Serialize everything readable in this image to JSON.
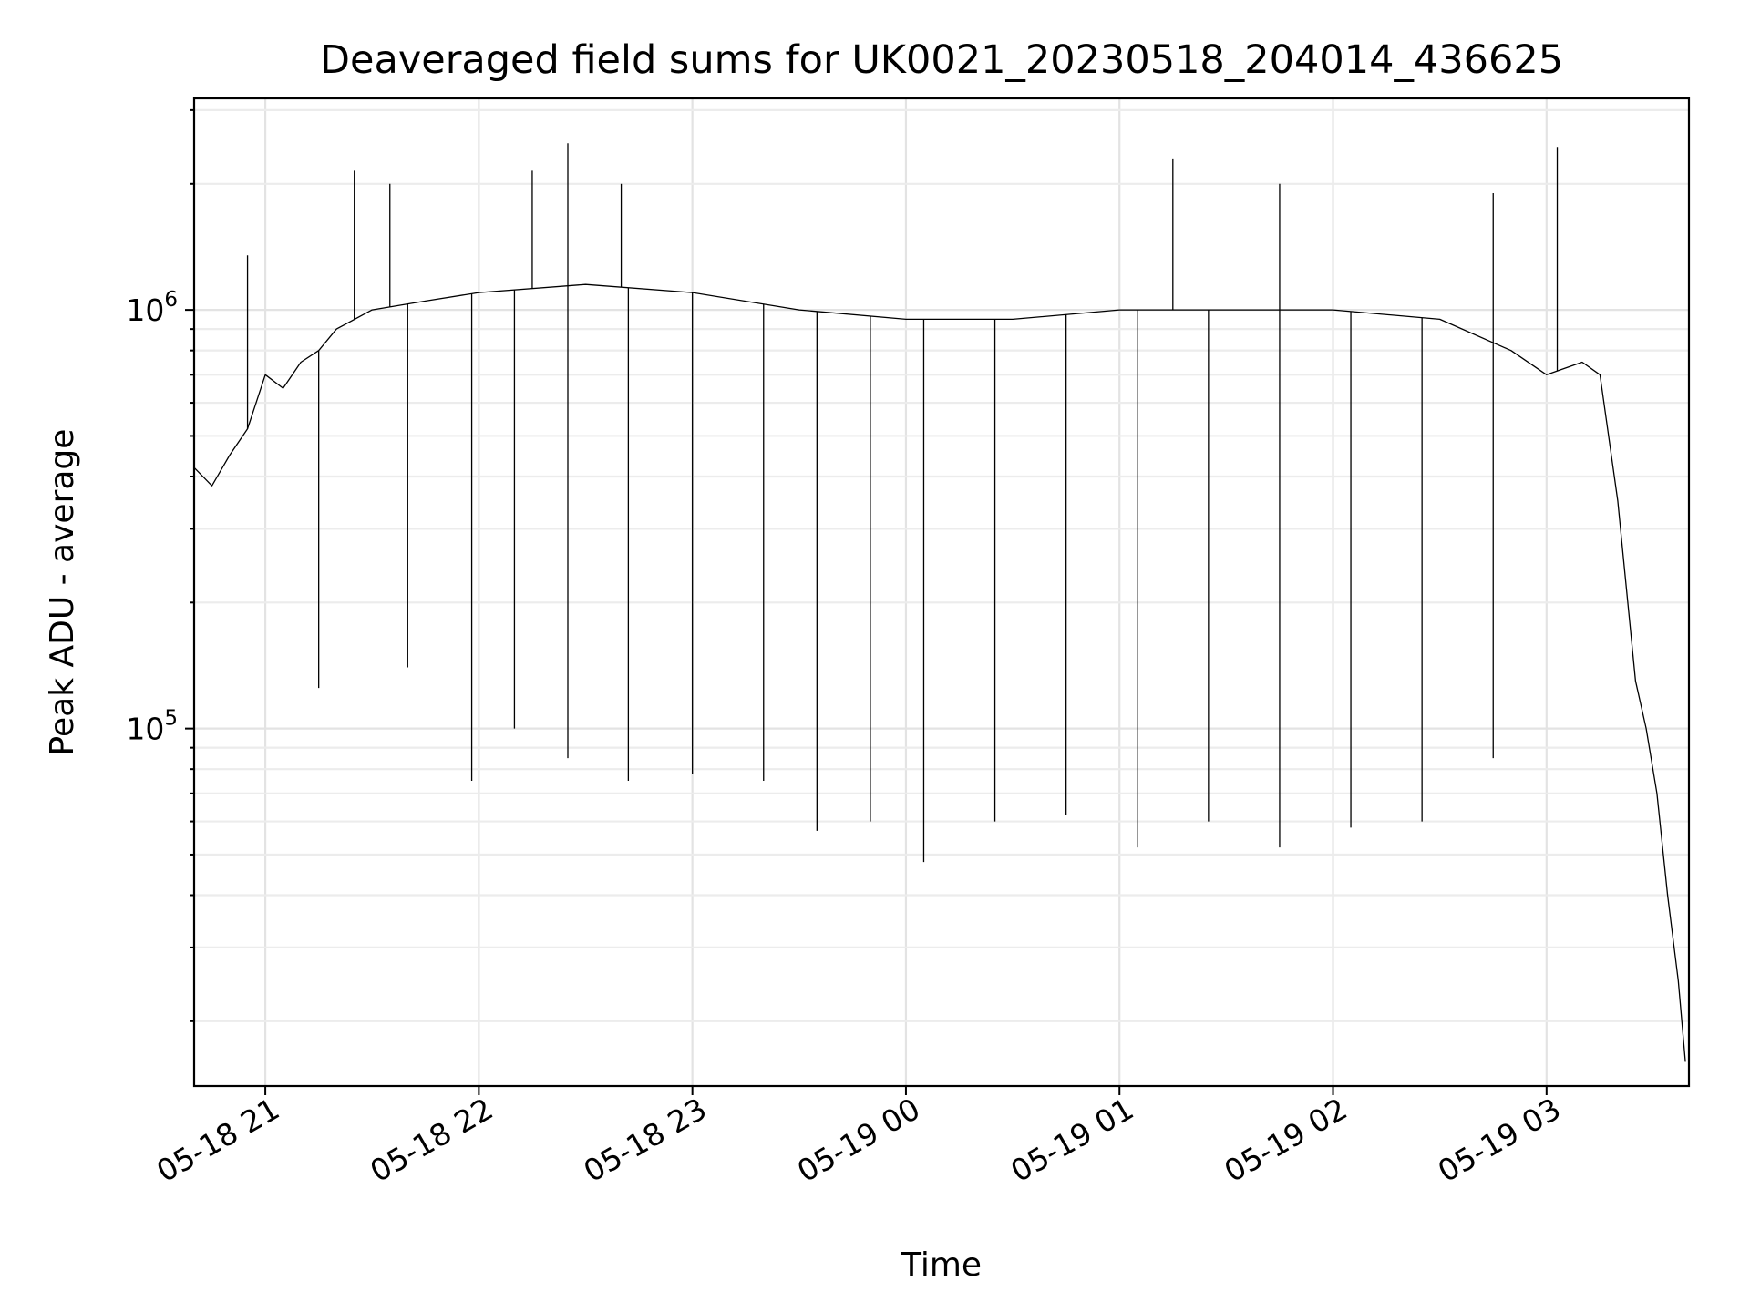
{
  "chart_data": {
    "type": "line",
    "title": "Deaveraged field sums for UK0021_20230518_204014_436625",
    "xlabel": "Time",
    "ylabel": "Peak ADU - average",
    "y_scale": "log",
    "grid": true,
    "color": "#000000",
    "xlim": [
      "2023-05-18 20:40",
      "2023-05-19 03:40"
    ],
    "ylim": [
      14000,
      3200000
    ],
    "x_ticks": [
      {
        "value": "2023-05-18 21:00",
        "label": "05-18 21"
      },
      {
        "value": "2023-05-18 22:00",
        "label": "05-18 22"
      },
      {
        "value": "2023-05-18 23:00",
        "label": "05-18 23"
      },
      {
        "value": "2023-05-19 00:00",
        "label": "05-19 00"
      },
      {
        "value": "2023-05-19 01:00",
        "label": "05-19 01"
      },
      {
        "value": "2023-05-19 02:00",
        "label": "05-19 02"
      },
      {
        "value": "2023-05-19 03:00",
        "label": "05-19 03"
      }
    ],
    "y_ticks": [
      {
        "value": 100000,
        "base": "10",
        "exp": "5"
      },
      {
        "value": 1000000,
        "base": "10",
        "exp": "6"
      }
    ],
    "series": [
      {
        "values": [
          {
            "x": "2023-05-18 20:40",
            "y": 420000
          },
          {
            "x": "2023-05-18 20:45",
            "y": 380000
          },
          {
            "x": "2023-05-18 20:50",
            "y": 450000
          },
          {
            "x": "2023-05-18 20:55",
            "y": 520000
          },
          {
            "x": "2023-05-18 21:00",
            "y": 700000
          },
          {
            "x": "2023-05-18 21:05",
            "y": 650000
          },
          {
            "x": "2023-05-18 21:10",
            "y": 750000
          },
          {
            "x": "2023-05-18 21:15",
            "y": 800000
          },
          {
            "x": "2023-05-18 21:20",
            "y": 900000
          },
          {
            "x": "2023-05-18 21:30",
            "y": 1000000
          },
          {
            "x": "2023-05-18 21:45",
            "y": 1050000
          },
          {
            "x": "2023-05-18 22:00",
            "y": 1100000
          },
          {
            "x": "2023-05-18 22:30",
            "y": 1150000
          },
          {
            "x": "2023-05-18 23:00",
            "y": 1100000
          },
          {
            "x": "2023-05-18 23:30",
            "y": 1000000
          },
          {
            "x": "2023-05-19 00:00",
            "y": 950000
          },
          {
            "x": "2023-05-19 00:30",
            "y": 950000
          },
          {
            "x": "2023-05-19 01:00",
            "y": 1000000
          },
          {
            "x": "2023-05-19 01:30",
            "y": 1000000
          },
          {
            "x": "2023-05-19 02:00",
            "y": 1000000
          },
          {
            "x": "2023-05-19 02:30",
            "y": 950000
          },
          {
            "x": "2023-05-19 02:50",
            "y": 800000
          },
          {
            "x": "2023-05-19 03:00",
            "y": 700000
          },
          {
            "x": "2023-05-19 03:10",
            "y": 750000
          },
          {
            "x": "2023-05-19 03:15",
            "y": 700000
          },
          {
            "x": "2023-05-19 03:20",
            "y": 350000
          },
          {
            "x": "2023-05-19 03:25",
            "y": 130000
          },
          {
            "x": "2023-05-19 03:28",
            "y": 100000
          },
          {
            "x": "2023-05-19 03:31",
            "y": 70000
          },
          {
            "x": "2023-05-19 03:34",
            "y": 40000
          },
          {
            "x": "2023-05-19 03:37",
            "y": 25000
          },
          {
            "x": "2023-05-19 03:39",
            "y": 16000
          }
        ],
        "dips": [
          {
            "x": "2023-05-18 21:15",
            "y": 125000
          },
          {
            "x": "2023-05-18 21:40",
            "y": 140000
          },
          {
            "x": "2023-05-18 21:58",
            "y": 75000
          },
          {
            "x": "2023-05-18 22:10",
            "y": 100000
          },
          {
            "x": "2023-05-18 22:25",
            "y": 85000
          },
          {
            "x": "2023-05-18 22:42",
            "y": 75000
          },
          {
            "x": "2023-05-18 23:00",
            "y": 78000
          },
          {
            "x": "2023-05-18 23:20",
            "y": 75000
          },
          {
            "x": "2023-05-18 23:35",
            "y": 57000
          },
          {
            "x": "2023-05-18 23:50",
            "y": 60000
          },
          {
            "x": "2023-05-19 00:05",
            "y": 48000
          },
          {
            "x": "2023-05-19 00:25",
            "y": 60000
          },
          {
            "x": "2023-05-19 00:45",
            "y": 62000
          },
          {
            "x": "2023-05-19 01:05",
            "y": 52000
          },
          {
            "x": "2023-05-19 01:25",
            "y": 60000
          },
          {
            "x": "2023-05-19 01:45",
            "y": 52000
          },
          {
            "x": "2023-05-19 02:05",
            "y": 58000
          },
          {
            "x": "2023-05-19 02:25",
            "y": 60000
          },
          {
            "x": "2023-05-19 02:45",
            "y": 85000
          }
        ],
        "peaks": [
          {
            "x": "2023-05-18 20:55",
            "y": 1350000
          },
          {
            "x": "2023-05-18 21:25",
            "y": 2150000
          },
          {
            "x": "2023-05-18 21:35",
            "y": 2000000
          },
          {
            "x": "2023-05-18 22:15",
            "y": 2150000
          },
          {
            "x": "2023-05-18 22:25",
            "y": 2500000
          },
          {
            "x": "2023-05-18 22:40",
            "y": 2000000
          },
          {
            "x": "2023-05-19 01:15",
            "y": 2300000
          },
          {
            "x": "2023-05-19 01:45",
            "y": 2000000
          },
          {
            "x": "2023-05-19 02:45",
            "y": 1900000
          },
          {
            "x": "2023-05-19 03:03",
            "y": 2450000
          }
        ]
      }
    ]
  }
}
